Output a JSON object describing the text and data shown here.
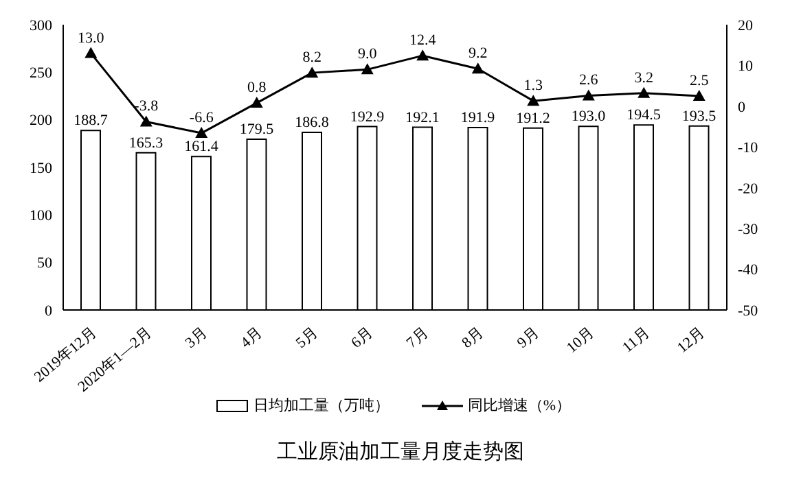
{
  "chart_data": {
    "type": "bar",
    "title": "工业原油加工量月度走势图",
    "categories": [
      "2019年12月",
      "2020年1—2月",
      "3月",
      "4月",
      "5月",
      "6月",
      "7月",
      "8月",
      "9月",
      "10月",
      "11月",
      "12月"
    ],
    "series": [
      {
        "name": "日均加工量（万吨）",
        "color": "#ffffff",
        "values": [
          188.7,
          165.3,
          161.4,
          179.5,
          186.8,
          192.9,
          192.1,
          191.9,
          191.2,
          193.0,
          194.5,
          193.5
        ],
        "value_labels": [
          "188.7",
          "165.3",
          "161.4",
          "179.5",
          "186.8",
          "192.9",
          "192.1",
          "191.9",
          "191.2",
          "193.0",
          "194.5",
          "193.5"
        ]
      },
      {
        "name": "同比增速（%）",
        "type": "line",
        "axis": "y2",
        "color": "#000000",
        "marker": "triangle",
        "values": [
          13.0,
          -3.8,
          -6.6,
          0.8,
          8.2,
          9.0,
          12.4,
          9.2,
          1.3,
          2.6,
          3.2,
          2.5
        ],
        "value_labels": [
          "13.0",
          "-3.8",
          "-6.6",
          "0.8",
          "8.2",
          "9.0",
          "12.4",
          "9.2",
          "1.3",
          "2.6",
          "3.2",
          "2.5"
        ]
      }
    ],
    "ylim": [
      0,
      300
    ],
    "yticks": [
      0,
      50,
      100,
      150,
      200,
      250,
      300
    ],
    "y2lim": [
      -50,
      20
    ],
    "y2ticks": [
      -50,
      -40,
      -30,
      -20,
      -10,
      0,
      10,
      20
    ],
    "grid": false,
    "legend": "bottom"
  }
}
